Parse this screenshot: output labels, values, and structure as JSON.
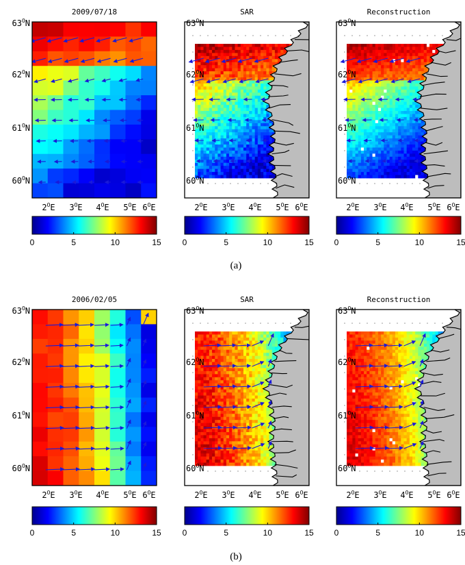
{
  "figure": {
    "captions": [
      "(a)",
      "(b)"
    ],
    "rows": [
      {
        "panels": [
          {
            "title": "2009/07/18",
            "kind": "coarse"
          },
          {
            "title": "SAR",
            "kind": "sar"
          },
          {
            "title": "Reconstruction",
            "kind": "recon"
          }
        ],
        "pattern": "northwest-strong"
      },
      {
        "panels": [
          {
            "title": "2006/02/05",
            "kind": "coarse"
          },
          {
            "title": "SAR",
            "kind": "sar"
          },
          {
            "title": "Reconstruction",
            "kind": "recon"
          }
        ],
        "pattern": "west-strong"
      }
    ],
    "lat_ticks": [
      {
        "deg": "63",
        "hemi": "N"
      },
      {
        "deg": "62",
        "hemi": "N"
      },
      {
        "deg": "61",
        "hemi": "N"
      },
      {
        "deg": "60",
        "hemi": "N"
      }
    ],
    "lon_ticks": [
      {
        "deg": "2",
        "hemi": "E"
      },
      {
        "deg": "3",
        "hemi": "E"
      },
      {
        "deg": "4",
        "hemi": "E"
      },
      {
        "deg": "5",
        "hemi": "E"
      },
      {
        "deg": "6",
        "hemi": "E"
      }
    ],
    "degree_symbol": "O",
    "colorbar": {
      "ticks": [
        "0",
        "5",
        "10",
        "15"
      ],
      "min": 0,
      "max": 15,
      "colormap": "jet"
    },
    "colors": {
      "arrow": "#1a1ad9",
      "land": "#bdbdbd",
      "coast": "#000000"
    }
  }
}
